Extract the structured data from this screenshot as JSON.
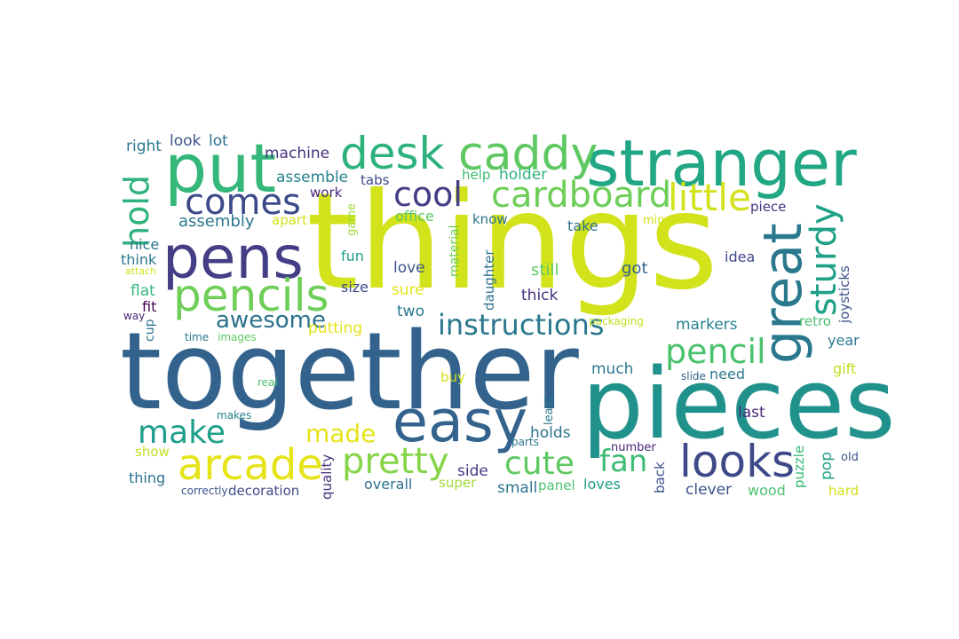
{
  "words": [
    {
      "text": "things",
      "color": "#d2e21b"
    },
    {
      "text": "together",
      "color": "#33638d"
    },
    {
      "text": "pieces",
      "color": "#21918c"
    },
    {
      "text": "stranger",
      "color": "#22a785"
    },
    {
      "text": "pens",
      "color": "#433e85"
    },
    {
      "text": "put",
      "color": "#35b779"
    },
    {
      "text": "great",
      "color": "#2a788e"
    },
    {
      "text": "easy",
      "color": "#33638d"
    },
    {
      "text": "desk",
      "color": "#2db27d"
    },
    {
      "text": "caddy",
      "color": "#5ec962"
    },
    {
      "text": "looks",
      "color": "#3e4989"
    },
    {
      "text": "pencils",
      "color": "#6ece58"
    },
    {
      "text": "arcade",
      "color": "#e5e419"
    },
    {
      "text": "cardboard",
      "color": "#6ece58"
    },
    {
      "text": "sturdy",
      "color": "#1fa187"
    },
    {
      "text": "comes",
      "color": "#3e4989"
    },
    {
      "text": "pretty",
      "color": "#86d549"
    },
    {
      "text": "little",
      "color": "#d2e21b"
    },
    {
      "text": "pencil",
      "color": "#4ac16d"
    },
    {
      "text": "hold",
      "color": "#2db27d"
    },
    {
      "text": "instructions",
      "color": "#2a788e"
    },
    {
      "text": "cool",
      "color": "#433e85"
    },
    {
      "text": "make",
      "color": "#1f9e89"
    },
    {
      "text": "cute",
      "color": "#5ec962"
    },
    {
      "text": "fan",
      "color": "#3dbc74"
    },
    {
      "text": "awesome",
      "color": "#2c728e"
    },
    {
      "text": "made",
      "color": "#e5e419"
    },
    {
      "text": "right",
      "color": "#2a788e"
    },
    {
      "text": "look",
      "color": "#3b528b"
    },
    {
      "text": "lot",
      "color": "#2c728e"
    },
    {
      "text": "machine",
      "color": "#46327e"
    },
    {
      "text": "assemble",
      "color": "#26828e"
    },
    {
      "text": "work",
      "color": "#482878"
    },
    {
      "text": "tabs",
      "color": "#3e4989"
    },
    {
      "text": "assembly",
      "color": "#2a788e"
    },
    {
      "text": "apart",
      "color": "#d2e21b"
    },
    {
      "text": "game",
      "color": "#a0da39"
    },
    {
      "text": "office",
      "color": "#5ec962"
    },
    {
      "text": "know",
      "color": "#2c728e"
    },
    {
      "text": "minute",
      "color": "#d2e21b"
    },
    {
      "text": "take",
      "color": "#2c728e"
    },
    {
      "text": "piece",
      "color": "#46327e"
    },
    {
      "text": "help",
      "color": "#3dbc74"
    },
    {
      "text": "holder",
      "color": "#2db27d"
    },
    {
      "text": "nice",
      "color": "#2a788e"
    },
    {
      "text": "think",
      "color": "#2a788e"
    },
    {
      "text": "attach",
      "color": "#d2e21b"
    },
    {
      "text": "fun",
      "color": "#1f9e89"
    },
    {
      "text": "material",
      "color": "#6ece58"
    },
    {
      "text": "daughter",
      "color": "#2c728e"
    },
    {
      "text": "still",
      "color": "#5ec962"
    },
    {
      "text": "got",
      "color": "#33638d"
    },
    {
      "text": "idea",
      "color": "#3e4989"
    },
    {
      "text": "joysticks",
      "color": "#3b528b"
    },
    {
      "text": "flat",
      "color": "#35b779"
    },
    {
      "text": "size",
      "color": "#3e4989"
    },
    {
      "text": "love",
      "color": "#3b528b"
    },
    {
      "text": "sure",
      "color": "#e5e419"
    },
    {
      "text": "thick",
      "color": "#46327e"
    },
    {
      "text": "fit",
      "color": "#440154"
    },
    {
      "text": "way",
      "color": "#482878"
    },
    {
      "text": "cup",
      "color": "#2c728e"
    },
    {
      "text": "two",
      "color": "#2a788e"
    },
    {
      "text": "packaging",
      "color": "#c2df23"
    },
    {
      "text": "retro",
      "color": "#4ac16d"
    },
    {
      "text": "putting",
      "color": "#e5e419"
    },
    {
      "text": "time",
      "color": "#2a788e"
    },
    {
      "text": "images",
      "color": "#5ec962"
    },
    {
      "text": "markers",
      "color": "#26828e"
    },
    {
      "text": "year",
      "color": "#2a788e"
    },
    {
      "text": "much",
      "color": "#2a788e"
    },
    {
      "text": "need",
      "color": "#2a788e"
    },
    {
      "text": "gift",
      "color": "#c2df23"
    },
    {
      "text": "real",
      "color": "#4ac16d"
    },
    {
      "text": "buy",
      "color": "#d2e21b"
    },
    {
      "text": "least",
      "color": "#2a788e"
    },
    {
      "text": "slide",
      "color": "#33638d"
    },
    {
      "text": "last",
      "color": "#482878"
    },
    {
      "text": "makes",
      "color": "#26828e"
    },
    {
      "text": "parts",
      "color": "#2a788e"
    },
    {
      "text": "holds",
      "color": "#2c728e"
    },
    {
      "text": "number",
      "color": "#482878"
    },
    {
      "text": "show",
      "color": "#c2df23"
    },
    {
      "text": "quality",
      "color": "#46327e"
    },
    {
      "text": "side",
      "color": "#443983"
    },
    {
      "text": "puzzle",
      "color": "#35b779"
    },
    {
      "text": "pop",
      "color": "#1fa187"
    },
    {
      "text": "old",
      "color": "#3b528b"
    },
    {
      "text": "thing",
      "color": "#2c728e"
    },
    {
      "text": "overall",
      "color": "#2c728e"
    },
    {
      "text": "super",
      "color": "#a0da39"
    },
    {
      "text": "small",
      "color": "#2c728e"
    },
    {
      "text": "panel",
      "color": "#4ac16d"
    },
    {
      "text": "loves",
      "color": "#1f9e89"
    },
    {
      "text": "back",
      "color": "#3b528b"
    },
    {
      "text": "clever",
      "color": "#3b528b"
    },
    {
      "text": "wood",
      "color": "#4ac16d"
    },
    {
      "text": "hard",
      "color": "#d2e21b"
    },
    {
      "text": "correctly",
      "color": "#3b528b"
    },
    {
      "text": "decoration",
      "color": "#3e4989"
    }
  ]
}
